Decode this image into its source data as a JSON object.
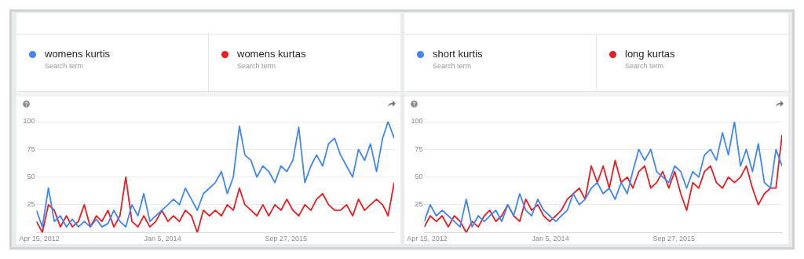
{
  "chart_data": [
    {
      "type": "line",
      "x": [
        "2012-04",
        "2012-05",
        "2012-06",
        "2012-07",
        "2012-08",
        "2012-09",
        "2012-10",
        "2012-11",
        "2012-12",
        "2013-01",
        "2013-02",
        "2013-03",
        "2013-04",
        "2013-05",
        "2013-06",
        "2013-07",
        "2013-08",
        "2013-09",
        "2013-10",
        "2013-11",
        "2013-12",
        "2014-01",
        "2014-02",
        "2014-03",
        "2014-04",
        "2014-05",
        "2014-06",
        "2014-07",
        "2014-08",
        "2014-09",
        "2014-10",
        "2014-11",
        "2014-12",
        "2015-01",
        "2015-02",
        "2015-03",
        "2015-04",
        "2015-05",
        "2015-06",
        "2015-07",
        "2015-08",
        "2015-09",
        "2015-10",
        "2015-11",
        "2015-12",
        "2016-01",
        "2016-02",
        "2016-03",
        "2016-04",
        "2016-05",
        "2016-06",
        "2016-07",
        "2016-08",
        "2016-09",
        "2016-10",
        "2016-11",
        "2016-12",
        "2017-01",
        "2017-02",
        "2017-03",
        "2017-04"
      ],
      "series": [
        {
          "name": "womens kurtis",
          "color": "#4285f4",
          "values": [
            20,
            5,
            40,
            10,
            15,
            5,
            12,
            5,
            10,
            5,
            12,
            5,
            8,
            20,
            10,
            5,
            25,
            15,
            35,
            10,
            15,
            20,
            25,
            30,
            25,
            40,
            30,
            20,
            35,
            40,
            45,
            55,
            35,
            50,
            96,
            70,
            65,
            50,
            60,
            55,
            45,
            60,
            55,
            65,
            95,
            45,
            60,
            70,
            60,
            80,
            85,
            70,
            60,
            50,
            75,
            65,
            80,
            55,
            85,
            100,
            85
          ]
        },
        {
          "name": "womens kurtas",
          "color": "#ea1c24",
          "values": [
            10,
            0,
            25,
            20,
            5,
            15,
            5,
            10,
            25,
            5,
            15,
            10,
            20,
            5,
            15,
            50,
            10,
            5,
            15,
            5,
            10,
            20,
            10,
            15,
            10,
            20,
            15,
            0,
            20,
            15,
            20,
            15,
            25,
            20,
            40,
            25,
            20,
            15,
            25,
            15,
            25,
            20,
            30,
            20,
            15,
            25,
            20,
            30,
            35,
            25,
            20,
            20,
            25,
            15,
            30,
            20,
            25,
            30,
            25,
            15,
            45
          ]
        }
      ],
      "xlim": [
        "2012-04",
        "2017-04"
      ],
      "xticks": [
        {
          "value": "2012-04-15",
          "label": "Apr 15, 2012"
        },
        {
          "value": "2014-01-05",
          "label": "Jan 5, 2014"
        },
        {
          "value": "2015-09-27",
          "label": "Sep 27, 2015"
        }
      ],
      "ylim": [
        0,
        100
      ],
      "yticks": [
        25,
        50,
        75,
        100
      ],
      "annotations": [
        "Search term",
        "Search term"
      ],
      "grid": "y",
      "legend": "top"
    },
    {
      "type": "line",
      "x": [
        "2012-04",
        "2012-05",
        "2012-06",
        "2012-07",
        "2012-08",
        "2012-09",
        "2012-10",
        "2012-11",
        "2012-12",
        "2013-01",
        "2013-02",
        "2013-03",
        "2013-04",
        "2013-05",
        "2013-06",
        "2013-07",
        "2013-08",
        "2013-09",
        "2013-10",
        "2013-11",
        "2013-12",
        "2014-01",
        "2014-02",
        "2014-03",
        "2014-04",
        "2014-05",
        "2014-06",
        "2014-07",
        "2014-08",
        "2014-09",
        "2014-10",
        "2014-11",
        "2014-12",
        "2015-01",
        "2015-02",
        "2015-03",
        "2015-04",
        "2015-05",
        "2015-06",
        "2015-07",
        "2015-08",
        "2015-09",
        "2015-10",
        "2015-11",
        "2015-12",
        "2016-01",
        "2016-02",
        "2016-03",
        "2016-04",
        "2016-05",
        "2016-06",
        "2016-07",
        "2016-08",
        "2016-09",
        "2016-10",
        "2016-11",
        "2016-12",
        "2017-01",
        "2017-02",
        "2017-03",
        "2017-04"
      ],
      "series": [
        {
          "name": "short kurtis",
          "color": "#4285f4",
          "values": [
            10,
            25,
            15,
            20,
            15,
            10,
            5,
            30,
            5,
            15,
            10,
            15,
            20,
            10,
            25,
            15,
            35,
            20,
            15,
            30,
            20,
            15,
            10,
            15,
            20,
            35,
            25,
            30,
            40,
            45,
            35,
            40,
            30,
            45,
            35,
            55,
            75,
            65,
            75,
            55,
            50,
            45,
            60,
            55,
            40,
            55,
            50,
            70,
            75,
            65,
            90,
            70,
            100,
            60,
            75,
            55,
            80,
            45,
            40,
            75,
            60
          ]
        },
        {
          "name": "long kurtas",
          "color": "#ea1c24",
          "values": [
            5,
            15,
            10,
            15,
            5,
            15,
            10,
            0,
            10,
            5,
            15,
            20,
            10,
            15,
            25,
            15,
            10,
            30,
            20,
            25,
            15,
            10,
            15,
            20,
            30,
            35,
            40,
            30,
            60,
            45,
            60,
            40,
            65,
            45,
            50,
            40,
            55,
            60,
            40,
            45,
            55,
            40,
            55,
            35,
            20,
            45,
            40,
            55,
            60,
            45,
            40,
            50,
            45,
            50,
            60,
            40,
            25,
            35,
            40,
            40,
            88
          ]
        }
      ],
      "xlim": [
        "2012-04",
        "2017-04"
      ],
      "xticks": [
        {
          "value": "2012-04-15",
          "label": "Apr 15, 2012"
        },
        {
          "value": "2014-01-05",
          "label": "Jan 5, 2014"
        },
        {
          "value": "2015-09-27",
          "label": "Sep 27, 2015"
        }
      ],
      "ylim": [
        0,
        100
      ],
      "yticks": [
        25,
        50,
        75,
        100
      ],
      "annotations": [
        "Search term",
        "Search term"
      ],
      "grid": "y",
      "legend": "top"
    }
  ]
}
